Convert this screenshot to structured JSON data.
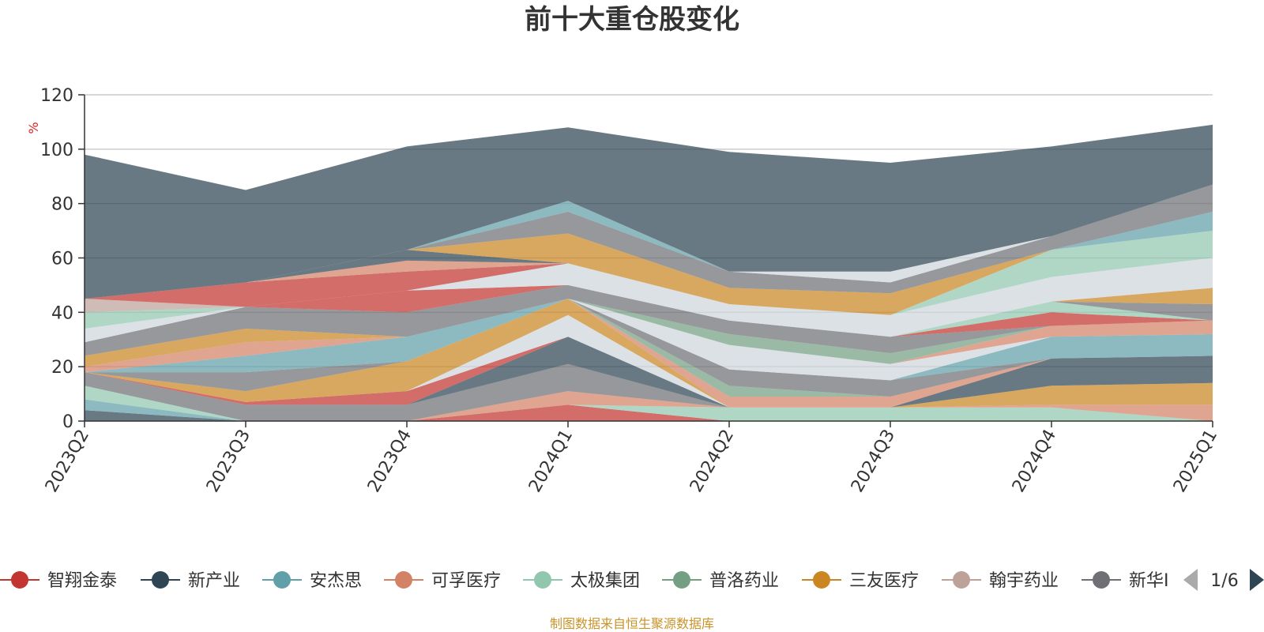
{
  "chart_data": {
    "type": "area",
    "title": "前十大重仓股变化",
    "ylabel": "%",
    "ylim": [
      0,
      120
    ],
    "yticks": [
      "0",
      "20",
      "40",
      "60",
      "80",
      "100",
      "120"
    ],
    "categories": [
      "2023Q2",
      "2023Q3",
      "2023Q4",
      "2024Q1",
      "2024Q2",
      "2024Q3",
      "2024Q4",
      "2025Q1"
    ],
    "grid": true,
    "legend_position": "bottom",
    "source_note": "制图数据来自恒生聚源数据库",
    "legend_page": "1/6",
    "legend": [
      {
        "name": "智翔金泰",
        "color": "#c23531"
      },
      {
        "name": "新产业",
        "color": "#2f4554"
      },
      {
        "name": "安杰思",
        "color": "#61a0a8"
      },
      {
        "name": "可孚医疗",
        "color": "#d48265"
      },
      {
        "name": "太极集团",
        "color": "#91c7ae"
      },
      {
        "name": "普洛药业",
        "color": "#749f83"
      },
      {
        "name": "三友医疗",
        "color": "#ca8622"
      },
      {
        "name": "翰宇药业",
        "color": "#bda29a"
      },
      {
        "name": "新华I",
        "color": "#6e7074"
      }
    ],
    "bands": [
      {
        "color": "#c23531",
        "values": [
          0,
          0,
          0,
          6,
          0,
          0,
          0,
          0
        ]
      },
      {
        "color": "#2f4554",
        "values": [
          4,
          0,
          0,
          0,
          0,
          0,
          0,
          0
        ]
      },
      {
        "color": "#61a0a8",
        "values": [
          4,
          0,
          0,
          0,
          0,
          0,
          0,
          0
        ]
      },
      {
        "color": "#91c7ae",
        "values": [
          5,
          0,
          0,
          0,
          5,
          5,
          5,
          0
        ]
      },
      {
        "color": "#d48265",
        "values": [
          0,
          0,
          0,
          5,
          0,
          0,
          1,
          6
        ]
      },
      {
        "color": "#bda29a",
        "values": [
          0,
          0,
          0,
          0,
          0,
          0,
          0,
          0
        ]
      },
      {
        "color": "#e8d8d4",
        "values": [
          0,
          0,
          0,
          0,
          0,
          0,
          0,
          0
        ]
      },
      {
        "color": "#cfd5dc",
        "values": [
          0,
          0,
          0,
          0,
          0,
          0,
          0,
          0
        ]
      },
      {
        "color": "#ca8622",
        "values": [
          0,
          0,
          0,
          0,
          0,
          0,
          7,
          8
        ]
      },
      {
        "color": "#6e7074",
        "values": [
          5,
          6,
          6,
          10,
          0,
          0,
          0,
          0
        ]
      },
      {
        "color": "#2f4554",
        "values": [
          0,
          0,
          0,
          10,
          0,
          0,
          10,
          10
        ]
      },
      {
        "color": "#c23531",
        "values": [
          0,
          1,
          5,
          0,
          0,
          0,
          0,
          0
        ]
      },
      {
        "color": "#cfd5dc",
        "values": [
          0,
          0,
          0,
          8,
          0,
          0,
          0,
          0
        ]
      },
      {
        "color": "#ca8622",
        "values": [
          0,
          4,
          11,
          6,
          0,
          0,
          0,
          0
        ]
      },
      {
        "color": "#d48265",
        "values": [
          0,
          0,
          0,
          0,
          4,
          4,
          0,
          0
        ]
      },
      {
        "color": "#749f83",
        "values": [
          0,
          0,
          0,
          0,
          4,
          0,
          0,
          0
        ]
      },
      {
        "color": "#6e7074",
        "values": [
          0,
          7,
          0,
          0,
          6,
          6,
          0,
          0
        ]
      },
      {
        "color": "#61a0a8",
        "values": [
          0,
          6,
          9,
          0,
          0,
          0,
          8,
          8
        ]
      },
      {
        "color": "#cfd5dc",
        "values": [
          0,
          0,
          0,
          0,
          9,
          6,
          0,
          0
        ]
      },
      {
        "color": "#d48265",
        "values": [
          2,
          5,
          0,
          0,
          0,
          0,
          4,
          5
        ]
      },
      {
        "color": "#749f83",
        "values": [
          0,
          0,
          0,
          0,
          4,
          4,
          0,
          0
        ]
      },
      {
        "color": "#ca8622",
        "values": [
          4,
          5,
          0,
          0,
          0,
          0,
          0,
          0
        ]
      },
      {
        "color": "#6e7074",
        "values": [
          5,
          8,
          9,
          5,
          5,
          6,
          0,
          0
        ]
      },
      {
        "color": "#c23531",
        "values": [
          0,
          0,
          8,
          0,
          0,
          0,
          5,
          0
        ]
      },
      {
        "color": "#91c7ae",
        "values": [
          0,
          0,
          0,
          0,
          0,
          0,
          4,
          0
        ]
      },
      {
        "color": "#cfd5dc",
        "values": [
          5,
          0,
          0,
          8,
          6,
          8,
          0,
          0
        ]
      },
      {
        "color": "#6e7074",
        "values": [
          0,
          0,
          0,
          0,
          0,
          0,
          0,
          6
        ]
      },
      {
        "color": "#ca8622",
        "values": [
          0,
          0,
          0,
          0,
          0,
          0,
          0,
          6
        ]
      },
      {
        "color": "#cfd5dc",
        "values": [
          0,
          0,
          0,
          0,
          0,
          0,
          9,
          11
        ]
      },
      {
        "color": "#91c7ae",
        "values": [
          0,
          0,
          0,
          0,
          0,
          0,
          10,
          10
        ]
      },
      {
        "color": "#61a0a8",
        "values": [
          0,
          0,
          0,
          0,
          0,
          0,
          0,
          7
        ]
      },
      {
        "color": "#91c7ae",
        "values": [
          6,
          0,
          0,
          0,
          0,
          0,
          0,
          0
        ]
      },
      {
        "color": "#bda29a",
        "values": [
          5,
          0,
          0,
          0,
          0,
          0,
          0,
          0
        ]
      },
      {
        "color": "#c23531",
        "values": [
          0,
          9,
          7,
          0,
          0,
          0,
          0,
          0
        ]
      },
      {
        "color": "#d48265",
        "values": [
          0,
          0,
          4,
          0,
          0,
          0,
          0,
          0
        ]
      },
      {
        "color": "#2f4554",
        "values": [
          0,
          0,
          4,
          0,
          0,
          0,
          0,
          0
        ]
      },
      {
        "color": "#ca8622",
        "values": [
          0,
          0,
          0,
          11,
          6,
          8,
          0,
          0
        ]
      },
      {
        "color": "#6e7074",
        "values": [
          0,
          0,
          0,
          8,
          6,
          4,
          5,
          10
        ]
      },
      {
        "color": "#61a0a8",
        "values": [
          0,
          0,
          0,
          4,
          0,
          0,
          0,
          0
        ]
      },
      {
        "color": "#cfd5dc",
        "values": [
          0,
          0,
          0,
          0,
          0,
          4,
          0,
          0
        ]
      },
      {
        "color": "#2f4554",
        "values": [
          53,
          34,
          38,
          27,
          44,
          40,
          33,
          22
        ]
      }
    ]
  }
}
